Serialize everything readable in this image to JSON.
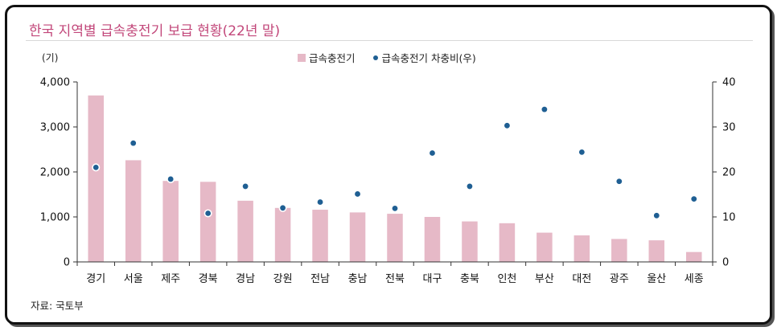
{
  "title": "한국 지역별 급속충전기 보급 현황(22년 말)",
  "unit_label": "(기)",
  "source": "자료: 국토부",
  "colors": {
    "bar": "#e6b9c7",
    "dot": "#1f5f93",
    "title": "#c2477a"
  },
  "chart_data": {
    "type": "bar",
    "title": "한국 지역별 급속충전기 보급 현황(22년 말)",
    "categories": [
      "경기",
      "서울",
      "제주",
      "경북",
      "경남",
      "강원",
      "전남",
      "충남",
      "전북",
      "대구",
      "충북",
      "인천",
      "부산",
      "대전",
      "광주",
      "울산",
      "세종"
    ],
    "series": [
      {
        "name": "급속충전기",
        "type": "bar",
        "axis": "left",
        "values": [
          3700,
          2260,
          1800,
          1780,
          1360,
          1200,
          1160,
          1100,
          1070,
          1000,
          900,
          860,
          650,
          590,
          510,
          480,
          220
        ]
      },
      {
        "name": "급속충전기 차충비(우)",
        "type": "scatter",
        "axis": "right",
        "values": [
          21,
          26.4,
          18.4,
          10.8,
          16.8,
          12,
          13.3,
          15.1,
          11.9,
          24.2,
          16.8,
          30.3,
          33.9,
          24.4,
          17.9,
          10.3,
          14
        ]
      }
    ],
    "y_left": {
      "ylim": [
        0,
        4000
      ],
      "ticks": [
        "0",
        "1,000",
        "2,000",
        "3,000",
        "4,000"
      ],
      "tick_values": [
        0,
        1000,
        2000,
        3000,
        4000
      ]
    },
    "y_right": {
      "ylim": [
        0,
        40
      ],
      "ticks": [
        "0",
        "10",
        "20",
        "30",
        "40"
      ],
      "tick_values": [
        0,
        10,
        20,
        30,
        40
      ]
    },
    "legend": "top-center",
    "grid": false
  }
}
